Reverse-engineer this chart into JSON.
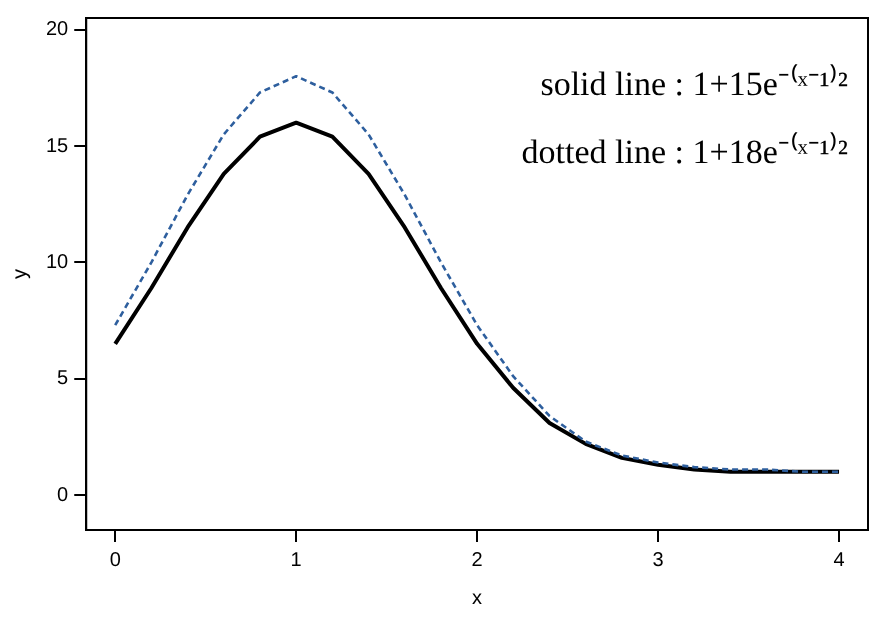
{
  "chart_data": {
    "type": "line",
    "xlabel": "x",
    "ylabel": "y",
    "x": [
      0,
      0.2,
      0.4,
      0.6,
      0.8,
      1,
      1.2,
      1.4,
      1.6,
      1.8,
      2,
      2.2,
      2.4,
      2.6,
      2.8,
      3,
      3.2,
      3.4,
      3.6,
      3.8,
      4
    ],
    "series": [
      {
        "color": "#000000",
        "line_style": "solid",
        "values": [
          6.5,
          8.9,
          11.5,
          13.8,
          15.4,
          16,
          15.4,
          13.8,
          11.5,
          8.9,
          6.5,
          4.6,
          3.1,
          2.2,
          1.6,
          1.3,
          1.1,
          1.0,
          1.0,
          1.0,
          1.0
        ]
      },
      {
        "color": "#2e5f9e",
        "line_style": "dashed",
        "values": [
          7.3,
          10.0,
          12.9,
          15.5,
          17.3,
          18,
          17.3,
          15.5,
          12.9,
          10.0,
          7.3,
          5.1,
          3.4,
          2.3,
          1.7,
          1.4,
          1.2,
          1.1,
          1.1,
          1.0,
          1.0
        ]
      }
    ],
    "xlim": [
      -0.16,
      4.16
    ],
    "xticks": [
      0,
      1,
      2,
      3,
      4
    ],
    "ylim": [
      -1.5,
      20.5
    ],
    "yticks": [
      0,
      5,
      10,
      15,
      20
    ],
    "grid": false,
    "legend": false,
    "marker": "none",
    "annotations": [
      "solid line : 1+15e⁻⁽ˣ⁻¹⁾²",
      "dotted line : 1+18e⁻⁽ˣ⁻¹⁾²"
    ]
  }
}
